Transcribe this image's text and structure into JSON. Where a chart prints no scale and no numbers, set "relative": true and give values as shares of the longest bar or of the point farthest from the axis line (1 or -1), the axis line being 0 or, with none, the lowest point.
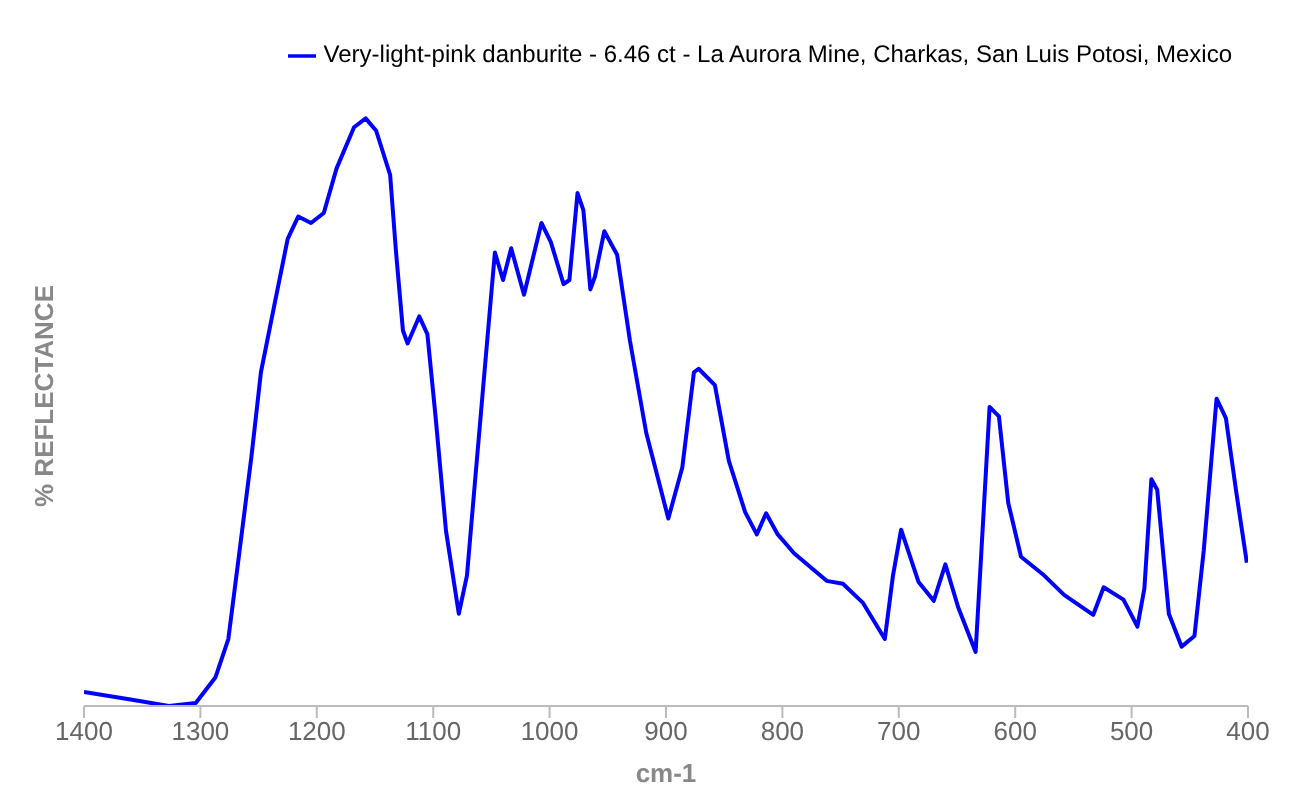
{
  "chart_data": {
    "type": "line",
    "xlabel": "cm-1",
    "ylabel": "% REFLECTANCE",
    "relative": true,
    "legend": "top right",
    "marker": "none",
    "line_style": "solid",
    "xlim": [
      1400,
      400
    ],
    "xticks": [
      1400,
      1300,
      1200,
      1100,
      1000,
      900,
      800,
      700,
      600,
      500,
      400
    ],
    "series": [
      {
        "name": "Very-light-pink danburite - 6.46 ct - La Aurora Mine, Charkas, San Luis Potosi, Mexico",
        "color": "#0000ff",
        "x": [
          1400,
          1360,
          1327,
          1304,
          1287,
          1276,
          1267,
          1256,
          1248,
          1236,
          1225,
          1216,
          1205,
          1194,
          1183,
          1168,
          1158,
          1149,
          1137,
          1132,
          1126,
          1122,
          1112,
          1105,
          1098,
          1089,
          1078,
          1071,
          1064,
          1055,
          1047,
          1040,
          1033,
          1022,
          1007,
          999,
          988,
          983,
          976,
          971,
          965,
          961,
          953,
          942,
          931,
          917,
          898,
          886,
          876,
          872,
          858,
          846,
          832,
          822,
          814,
          804,
          790,
          762,
          748,
          731,
          712,
          705,
          698,
          683,
          670,
          660,
          649,
          634,
          629,
          622,
          614,
          606,
          595,
          575,
          558,
          533,
          524,
          507,
          495,
          489,
          483,
          478,
          468,
          457,
          446,
          438,
          427,
          419,
          410,
          401
        ],
        "values": [
          0.024,
          0.011,
          0,
          0.005,
          0.049,
          0.114,
          0.254,
          0.427,
          0.568,
          0.687,
          0.795,
          0.833,
          0.822,
          0.839,
          0.915,
          0.985,
          1,
          0.979,
          0.904,
          0.774,
          0.639,
          0.617,
          0.663,
          0.633,
          0.493,
          0.298,
          0.157,
          0.222,
          0.384,
          0.59,
          0.772,
          0.725,
          0.779,
          0.7,
          0.822,
          0.79,
          0.718,
          0.725,
          0.873,
          0.844,
          0.709,
          0.731,
          0.808,
          0.768,
          0.622,
          0.465,
          0.319,
          0.406,
          0.568,
          0.574,
          0.546,
          0.417,
          0.33,
          0.292,
          0.328,
          0.292,
          0.26,
          0.213,
          0.208,
          0.176,
          0.114,
          0.222,
          0.3,
          0.211,
          0.179,
          0.241,
          0.168,
          0.092,
          0.265,
          0.509,
          0.493,
          0.346,
          0.254,
          0.222,
          0.189,
          0.155,
          0.202,
          0.181,
          0.135,
          0.2,
          0.386,
          0.368,
          0.157,
          0.101,
          0.119,
          0.265,
          0.523,
          0.49,
          0.363,
          0.244
        ]
      }
    ]
  }
}
